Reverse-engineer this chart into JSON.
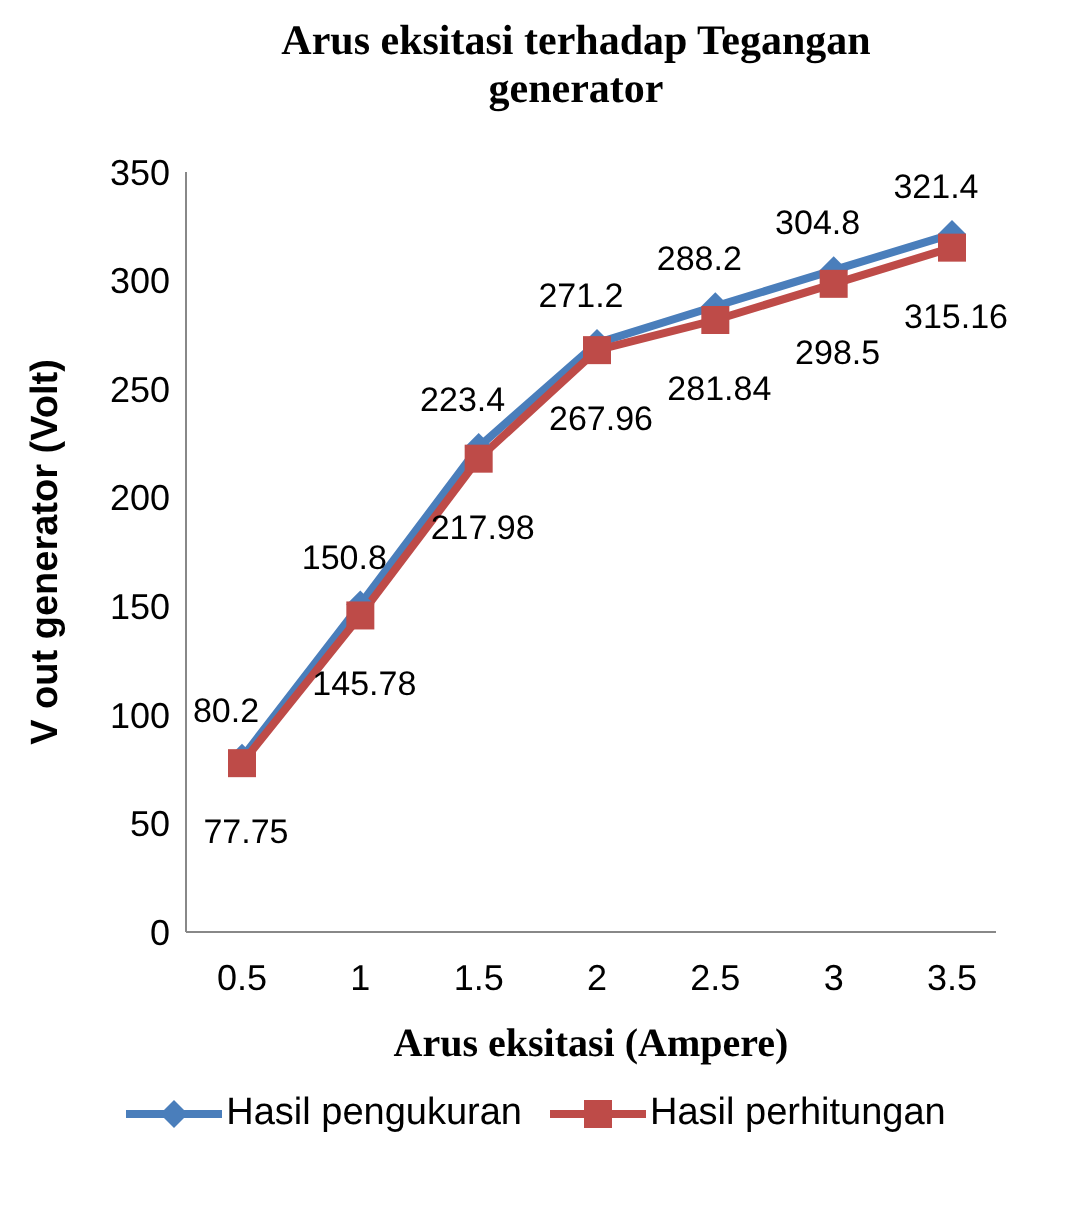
{
  "chart_data": {
    "type": "line",
    "title": "Arus eksitasi terhadap Tegangan generator",
    "xlabel": "Arus eksitasi (Ampere)",
    "ylabel": "V out generator (Volt)",
    "categories": [
      "0.5",
      "1",
      "1.5",
      "2",
      "2.5",
      "3",
      "3.5"
    ],
    "series": [
      {
        "name": "Hasil pengukuran",
        "color": "#4a7ebb",
        "marker": "diamond",
        "values": [
          80.2,
          150.8,
          223.4,
          271.2,
          288.2,
          304.8,
          321.4
        ]
      },
      {
        "name": "Hasil perhitungan",
        "color": "#be4b48",
        "marker": "square",
        "values": [
          77.75,
          145.78,
          217.98,
          267.96,
          281.84,
          298.5,
          315.16
        ]
      }
    ],
    "ylim": [
      0,
      350
    ],
    "yticks": [
      0,
      50,
      100,
      150,
      200,
      250,
      300,
      350
    ],
    "grid": false,
    "legend": "bottom",
    "data_labels": true
  }
}
